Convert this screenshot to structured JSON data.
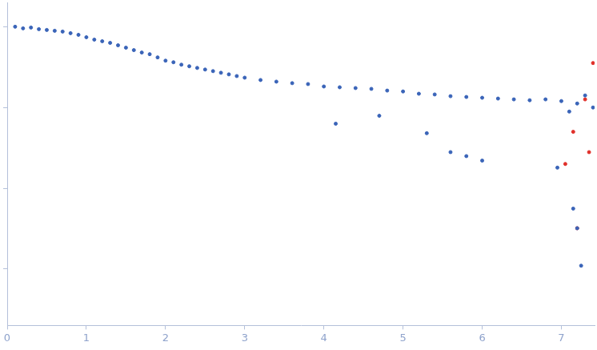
{
  "chart_data": {
    "type": "scatter",
    "log": "y",
    "grid": false,
    "tick_labels": "x",
    "marker": "circle",
    "xlim": [
      0,
      7.42
    ],
    "xticks": [
      0,
      1,
      2,
      3,
      4,
      5,
      6,
      7
    ],
    "ylim": [
      0.0002,
      2
    ],
    "yticks": [
      0.001,
      0.01,
      0.1,
      1
    ],
    "series": [
      {
        "color": "#3a64b8",
        "x": [
          0.1,
          0.2,
          0.3,
          0.4,
          0.5,
          0.6,
          0.7,
          0.8,
          0.9,
          1.0,
          1.1,
          1.2,
          1.3,
          1.4,
          1.5,
          1.6,
          1.7,
          1.8,
          1.9,
          2.0,
          2.1,
          2.2,
          2.3,
          2.4,
          2.5,
          2.6,
          2.7,
          2.8,
          2.9,
          3.0,
          3.2,
          3.4,
          3.6,
          3.8,
          4.0,
          4.2,
          4.4,
          4.6,
          4.8,
          5.0,
          5.2,
          5.4,
          5.6,
          5.8,
          6.0,
          6.2,
          6.4,
          6.6,
          6.8,
          7.0,
          7.1,
          7.2,
          7.3,
          7.4,
          4.15,
          5.6,
          5.8,
          6.0,
          6.95,
          7.15,
          7.2,
          7.25,
          5.3,
          4.7
        ],
        "values": [
          1,
          0.955,
          0.977,
          0.933,
          0.912,
          0.891,
          0.871,
          0.832,
          0.794,
          0.741,
          0.692,
          0.661,
          0.631,
          0.589,
          0.55,
          0.513,
          0.479,
          0.457,
          0.417,
          0.38,
          0.363,
          0.339,
          0.324,
          0.309,
          0.295,
          0.282,
          0.269,
          0.257,
          0.245,
          0.234,
          0.219,
          0.209,
          0.2,
          0.195,
          0.182,
          0.178,
          0.174,
          0.17,
          0.162,
          0.158,
          0.148,
          0.145,
          0.138,
          0.135,
          0.132,
          0.129,
          0.126,
          0.123,
          0.126,
          0.12,
          0.089,
          0.112,
          0.141,
          0.1,
          0.063,
          0.028,
          0.025,
          0.022,
          0.018,
          0.0056,
          0.0032,
          0.0011,
          0.048,
          0.079
        ]
      },
      {
        "color": "#e0302a",
        "x": [
          7.05,
          7.15,
          7.2,
          7.3,
          7.35,
          7.4
        ],
        "values": [
          0.02,
          0.05,
          0.0032,
          0.126,
          0.028,
          0.355
        ]
      }
    ]
  }
}
